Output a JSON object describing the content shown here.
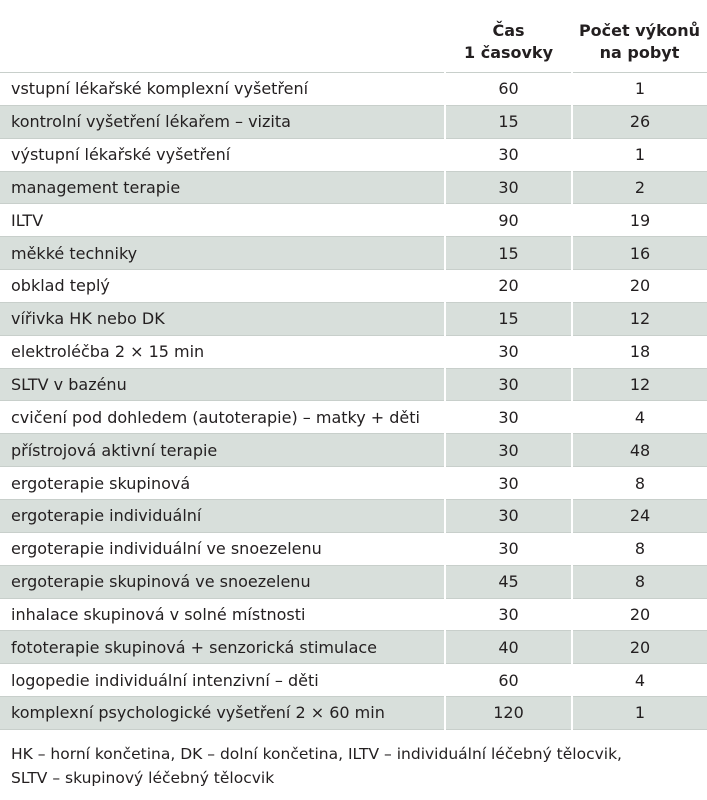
{
  "table": {
    "header": {
      "col2": [
        "Čas",
        "1 časovky"
      ],
      "col3": [
        "Počet výkonů",
        "na pobyt"
      ]
    },
    "rows": [
      [
        "vstupní lékařské komplexní vyšetření",
        60,
        1
      ],
      [
        "kontrolní vyšetření lékařem – vizita",
        15,
        26
      ],
      [
        "výstupní lékařské vyšetření",
        30,
        1
      ],
      [
        "management terapie",
        30,
        2
      ],
      [
        "ILTV",
        90,
        19
      ],
      [
        "měkké techniky",
        15,
        16
      ],
      [
        "obklad teplý",
        20,
        20
      ],
      [
        "vířivka HK nebo DK",
        15,
        12
      ],
      [
        "elektroléčba  2 × 15 min",
        30,
        18
      ],
      [
        "SLTV v bazénu",
        30,
        12
      ],
      [
        "cvičení pod dohledem (autoterapie) – matky + děti",
        30,
        4
      ],
      [
        "přístrojová aktivní terapie",
        30,
        48
      ],
      [
        "ergoterapie skupinová",
        30,
        8
      ],
      [
        "ergoterapie individuální",
        30,
        24
      ],
      [
        "ergoterapie individuální ve snoezelenu",
        30,
        8
      ],
      [
        "ergoterapie skupinová ve snoezelenu",
        45,
        8
      ],
      [
        "inhalace skupinová v solné místnosti",
        30,
        20
      ],
      [
        "fototerapie skupinová + senzorická stimulace",
        40,
        20
      ],
      [
        "logopedie individuální intenzivní – děti",
        60,
        4
      ],
      [
        "komplexní psychologické vyšetření 2 × 60 min",
        120,
        1
      ]
    ],
    "footnote": [
      "HK – horní končetina, DK – dolní končetina, ILTV – individuální léčebný tělocvik,",
      "SLTV – skupinový léčebný tělocvik"
    ]
  }
}
